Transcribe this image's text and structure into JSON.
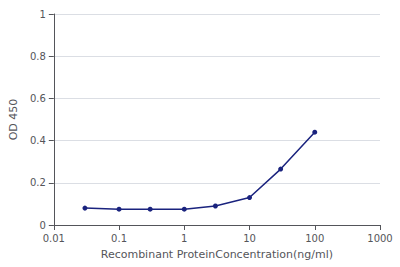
{
  "chart_data": {
    "type": "line",
    "x": [
      0.03,
      0.1,
      0.3,
      1.0,
      3.0,
      10.0,
      30.0,
      100.0
    ],
    "values": [
      0.08,
      0.075,
      0.075,
      0.075,
      0.09,
      0.13,
      0.265,
      0.44
    ],
    "color": "#1a237e",
    "marker": "circle",
    "xlabel": "Recombinant ProteinConcentration(ng/ml)",
    "ylabel": "OD 450",
    "log": "x",
    "xlim": [
      0.01,
      1000
    ],
    "ylim": [
      0,
      1.0
    ],
    "xticks": [
      0.01,
      0.1,
      1,
      10,
      100,
      1000
    ],
    "yticks": [
      0,
      0.2,
      0.4,
      0.6,
      0.8,
      1
    ],
    "grid": "y"
  }
}
